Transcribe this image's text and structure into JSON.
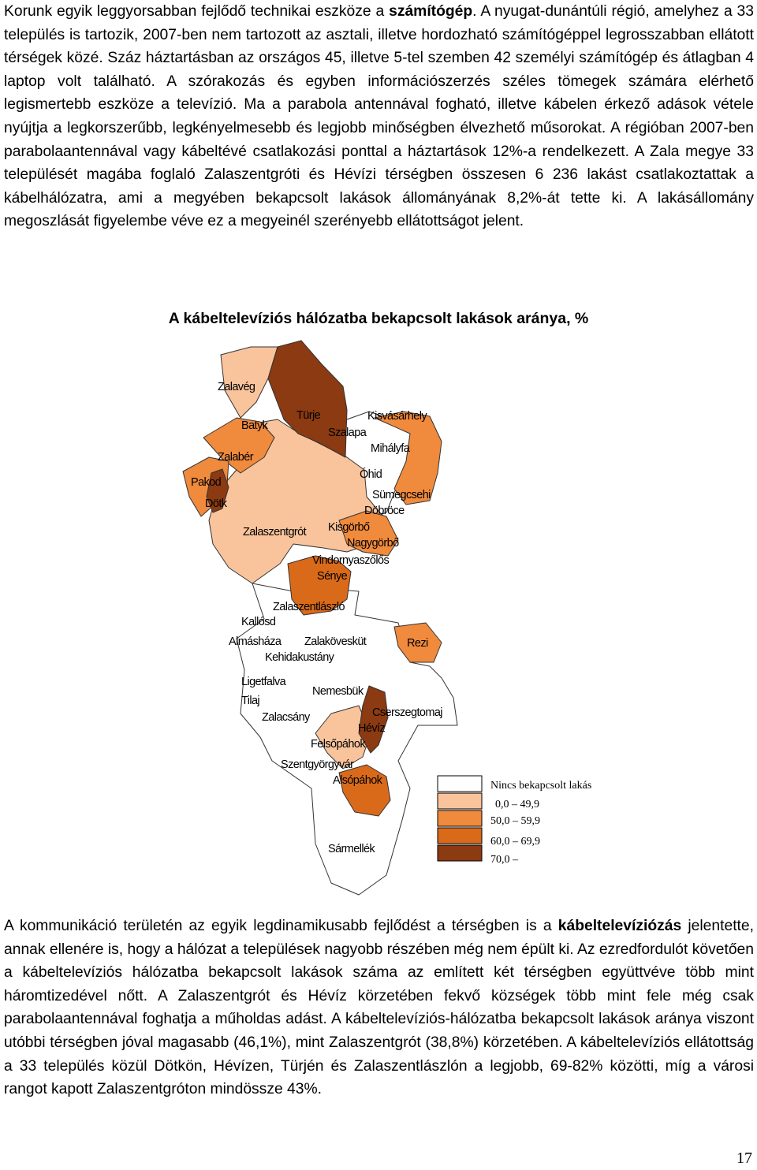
{
  "paragraph1": {
    "s1a": "Korunk egyik leggyorsabban fejlődő technikai eszköze a ",
    "s1b": "számítógép",
    "s1c": ". A nyugat-dunántúli régió, amelyhez a 33 település is tartozik, 2007-ben nem tartozott az asztali, illetve hordozható számítógéppel legrosszabban ellátott térségek közé. Száz háztartásban az országos 45, illetve 5-tel szemben 42 személyi számítógép és átlagban 4 laptop volt található. A szórakozás és egyben információszerzés széles tömegek számára elérhető legismertebb eszköze a televízió. Ma a parabola antennával fogható, illetve kábelen érkező adások vétele nyújtja a legkorszerűbb, legkényelmesebb és legjobb minőségben élvezhető műsorokat. A régióban 2007-ben parabolaantennával vagy kábeltévé csatlakozási ponttal a háztartások 12%-a rendelkezett. A Zala megye 33 települését magába foglaló Zalaszentgróti és Hévízi térségben összesen 6 236 lakást csatlakoztattak a kábelhálózatra, ami a megyében bekapcsolt lakások állományának 8,2%-át tette ki. A lakásállomány megoszlását figyelembe véve ez a megyeinél szerényebb ellátottságot jelent."
  },
  "map": {
    "title": "A kábeltelevíziós hálózatba bekapcsolt lakások aránya, %",
    "colors": {
      "none": "#ffffff",
      "c1": "#f9c49c",
      "c2": "#f08a3c",
      "c3": "#d96a1a",
      "c4": "#8b3a12",
      "outline": "#333333"
    },
    "places": {
      "zalaveg": "Zalavég",
      "turje": "Türje",
      "kisvasarhely": "Kisvásárhely",
      "batyk": "Batyk",
      "szalapa": "Szalapa",
      "mihalyfa": "Mihályfa",
      "zalaber": "Zalabér",
      "ohid": "Óhid",
      "pakod": "Pakod",
      "sumegcsehi": "Sümegcsehi",
      "dotk": "Dötk",
      "dobroce": "Döbröce",
      "zalaszentgrot": "Zalaszentgrót",
      "kisgorbo": "Kisgörbő",
      "nagygorbo": "Nagygörbő",
      "vindornyaszolos": "Vindornyaszőlős",
      "senye": "Sénye",
      "zalaszentlaszlo": "Zalaszentlászló",
      "kallosd": "Kallósd",
      "almashaza": "Almásháza",
      "zalakoveskut": "Zalakövesküt",
      "rezi": "Rezi",
      "kehidakustany": "Kehidakustány",
      "ligetfalva": "Ligetfalva",
      "nemesbuk": "Nemesbük",
      "tilaj": "Tilaj",
      "cserszegtomaj": "Cserszegtomaj",
      "zalacsany": "Zalacsány",
      "heviz": "Hévíz",
      "felsopahok": "Felsőpáhok",
      "szentgyorgyvar": "Szentgyörgyvár",
      "alsopahok": "Alsópáhok",
      "sarmellek": "Sármellék"
    },
    "legend": {
      "none": "Nincs bekapcsolt lakás",
      "c1": "0,0 – 49,9",
      "c2": "50,0 – 59,9",
      "c3": "60,0 – 69,9",
      "c4": "70,0 –"
    }
  },
  "paragraph2": {
    "s1a": "A kommunikáció területén az egyik legdinamikusabb fejlődést a térségben is a ",
    "s1b": "kábeltelevíziózás",
    "s1c": " jelentette, annak ellenére is, hogy a hálózat a települések nagyobb részében még nem épült ki. Az ezredfordulót követően a kábeltelevíziós hálózatba bekapcsolt lakások száma az említett két térségben együttvéve több mint háromtizedével nőtt. A Zalaszentgrót és Hévíz körzetében fekvő községek több mint fele még csak parabolaantennával foghatja a műholdas adást. A kábeltelevíziós-hálózatba bekapcsolt lakások aránya viszont utóbbi térségben jóval magasabb (46,1%), mint Zalaszentgrót (38,8%) körzetében. A kábeltelevíziós ellátottság a 33 település közül Dötkön, Hévízen, Türjén és Zalaszentlászlón a legjobb, 69-82% közötti, míg a városi rangot kapott Zalaszentgróton mindössze 43%."
  },
  "page_number": "17"
}
